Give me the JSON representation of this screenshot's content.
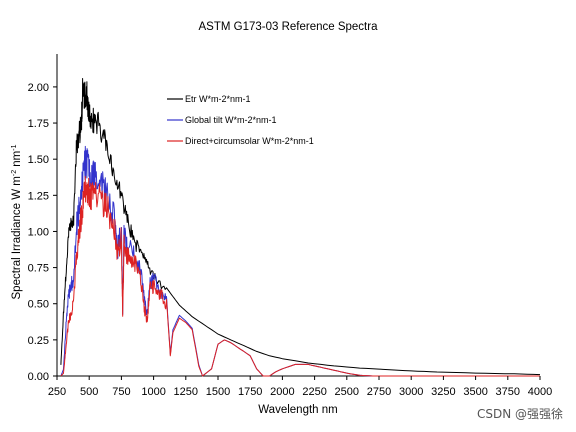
{
  "chart_data": {
    "type": "line",
    "title": "ASTM G173-03 Reference Spectra",
    "xlabel": "Wavelength nm",
    "ylabel": "Spectral Irradiance  W m",
    "ylabel_sup1": "-2",
    "ylabel_mid": " nm",
    "ylabel_sup2": "-1",
    "xlim": [
      250,
      4000
    ],
    "ylim": [
      0,
      2.2
    ],
    "xticks": [
      250,
      500,
      750,
      1000,
      1250,
      1500,
      1750,
      2000,
      2250,
      2500,
      2750,
      3000,
      3250,
      3500,
      3750,
      4000
    ],
    "yticks": [
      0.0,
      0.25,
      0.5,
      0.75,
      1.0,
      1.25,
      1.5,
      1.75,
      2.0
    ],
    "ytick_labels": [
      "0.00",
      "0.25",
      "0.50",
      "0.75",
      "1.00",
      "1.25",
      "1.50",
      "1.75",
      "2.00"
    ],
    "grid": false,
    "legend_position": "top-center",
    "series": [
      {
        "name": "Etr W*m-2*nm-1",
        "color": "#000000",
        "x": [
          280,
          300,
          320,
          340,
          360,
          380,
          400,
          420,
          440,
          450,
          460,
          470,
          480,
          490,
          500,
          520,
          550,
          600,
          650,
          700,
          750,
          800,
          850,
          900,
          950,
          1000,
          1100,
          1200,
          1300,
          1400,
          1500,
          1600,
          1700,
          1800,
          1900,
          2000,
          2200,
          2400,
          2600,
          2800,
          3000,
          3200,
          3500,
          3800,
          4000
        ],
        "values": [
          0.08,
          0.45,
          0.75,
          1.05,
          1.12,
          1.15,
          1.65,
          1.75,
          1.85,
          2.1,
          2.05,
          2.03,
          2.06,
          1.97,
          1.95,
          1.85,
          1.88,
          1.77,
          1.62,
          1.48,
          1.3,
          1.12,
          0.98,
          0.9,
          0.82,
          0.74,
          0.61,
          0.49,
          0.41,
          0.35,
          0.29,
          0.25,
          0.21,
          0.17,
          0.14,
          0.12,
          0.09,
          0.07,
          0.055,
          0.045,
          0.035,
          0.028,
          0.02,
          0.015,
          0.01
        ]
      },
      {
        "name": "Global tilt  W*m-2*nm-1",
        "color": "#3333cc",
        "x": [
          280,
          300,
          320,
          340,
          360,
          380,
          400,
          420,
          440,
          460,
          480,
          500,
          520,
          550,
          600,
          650,
          700,
          720,
          750,
          760,
          770,
          800,
          850,
          900,
          930,
          950,
          970,
          1000,
          1050,
          1100,
          1130,
          1150,
          1200,
          1250,
          1300,
          1350,
          1380,
          1450,
          1500,
          1550,
          1600,
          1650,
          1700,
          1750,
          1800,
          1850,
          1900,
          1950,
          2000,
          2100,
          2200,
          2300,
          2400,
          2500,
          2600,
          2700,
          2800,
          3000,
          3500,
          4000
        ],
        "values": [
          0.0,
          0.05,
          0.38,
          0.62,
          0.68,
          0.75,
          1.12,
          1.25,
          1.42,
          1.58,
          1.62,
          1.55,
          1.5,
          1.52,
          1.44,
          1.32,
          1.18,
          0.95,
          1.12,
          0.5,
          1.05,
          0.96,
          0.92,
          0.78,
          0.55,
          0.45,
          0.7,
          0.72,
          0.65,
          0.55,
          0.15,
          0.32,
          0.42,
          0.38,
          0.33,
          0.08,
          0.0,
          0.05,
          0.22,
          0.25,
          0.23,
          0.2,
          0.17,
          0.14,
          0.05,
          0.0,
          0.0,
          0.03,
          0.05,
          0.08,
          0.08,
          0.06,
          0.04,
          0.02,
          0.005,
          0.0,
          0.0,
          0.0,
          0.0,
          0.0
        ]
      },
      {
        "name": "Direct+circumsolar W*m-2*nm-1",
        "color": "#dd2222",
        "x": [
          280,
          300,
          320,
          340,
          360,
          380,
          400,
          420,
          440,
          460,
          480,
          500,
          520,
          550,
          600,
          650,
          700,
          720,
          750,
          760,
          770,
          800,
          850,
          900,
          930,
          950,
          970,
          1000,
          1050,
          1100,
          1130,
          1150,
          1200,
          1250,
          1300,
          1350,
          1380,
          1450,
          1500,
          1550,
          1600,
          1650,
          1700,
          1750,
          1800,
          1850,
          1900,
          1950,
          2000,
          2100,
          2200,
          2300,
          2400,
          2500,
          2600,
          2700,
          2800,
          3000,
          3500,
          4000
        ],
        "values": [
          0.0,
          0.02,
          0.22,
          0.4,
          0.48,
          0.56,
          0.9,
          1.05,
          1.22,
          1.36,
          1.42,
          1.38,
          1.35,
          1.38,
          1.32,
          1.24,
          1.1,
          0.9,
          1.05,
          0.45,
          0.98,
          0.9,
          0.86,
          0.73,
          0.5,
          0.42,
          0.65,
          0.68,
          0.62,
          0.53,
          0.14,
          0.3,
          0.4,
          0.37,
          0.32,
          0.07,
          0.0,
          0.05,
          0.22,
          0.25,
          0.23,
          0.2,
          0.17,
          0.14,
          0.05,
          0.0,
          0.0,
          0.03,
          0.05,
          0.08,
          0.08,
          0.06,
          0.04,
          0.02,
          0.005,
          0.0,
          0.0,
          0.0,
          0.0,
          0.0
        ]
      }
    ]
  },
  "watermark": "CSDN @强强徐"
}
